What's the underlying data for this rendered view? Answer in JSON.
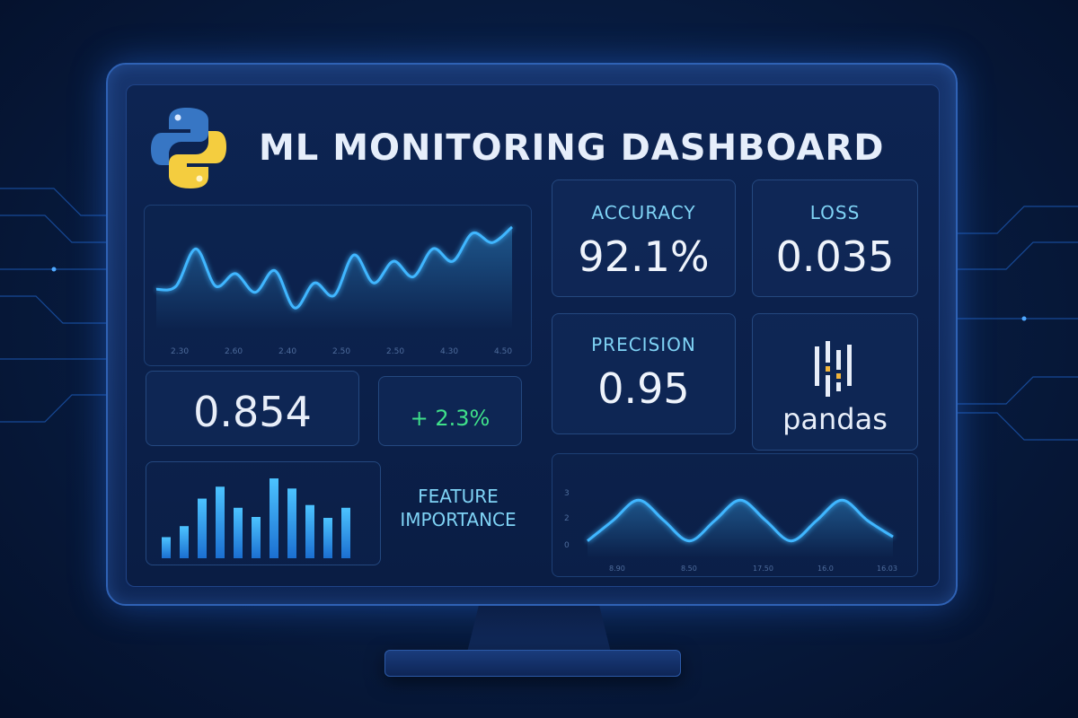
{
  "header": {
    "title": "ML MONITORING DASHBOARD",
    "logo_icon": "python-logo-icon"
  },
  "metrics": {
    "accuracy": {
      "label": "ACCURACY",
      "value": "92.1%"
    },
    "loss": {
      "label": "LOSS",
      "value": "0.035"
    },
    "precision": {
      "label": "PRECISION",
      "value": "0.95"
    },
    "score": {
      "value": "0.854"
    },
    "delta": {
      "value": "+ 2.3%"
    }
  },
  "brand": {
    "pandas": "pandas",
    "pandas_icon": "pandas-logo-icon"
  },
  "feature_importance": {
    "label_line1": "FEATURE",
    "label_line2": "IMPORTANCE"
  },
  "colors": {
    "accent": "#3fb6ff",
    "positive": "#3fe08a",
    "label": "#7fd3f5"
  },
  "chart_data": [
    {
      "type": "line",
      "name": "trend-chart",
      "tick_labels": [
        "2.30",
        "2.60",
        "2.40",
        "2.50",
        "2.50",
        "4.30",
        "4.50"
      ],
      "values": [
        0.3,
        0.35,
        0.95,
        0.35,
        0.55,
        0.25,
        0.6,
        0.0,
        0.4,
        0.2,
        0.85,
        0.4,
        0.75,
        0.5,
        0.95,
        0.75,
        1.2,
        1.05,
        1.3
      ],
      "ylim": [
        -0.1,
        1.4
      ],
      "grid": false
    },
    {
      "type": "bar",
      "name": "feature-importance-chart",
      "values": [
        2.3,
        3.5,
        6.5,
        7.8,
        5.5,
        4.5,
        8.7,
        7.6,
        5.8,
        4.4,
        5.5
      ],
      "ylim": [
        0,
        9
      ]
    },
    {
      "type": "line",
      "name": "wave-chart",
      "y_tick_labels": [
        "3",
        "2",
        "0"
      ],
      "x_tick_labels": [
        "8.90",
        "8.50",
        "17.50",
        "16.0",
        "16.03"
      ],
      "values": [
        0.5,
        1.5,
        2.5,
        1.5,
        0.5,
        1.5,
        2.5,
        1.5,
        0.5,
        1.5,
        2.5,
        1.5,
        0.7
      ],
      "ylim": [
        0,
        3
      ]
    }
  ]
}
